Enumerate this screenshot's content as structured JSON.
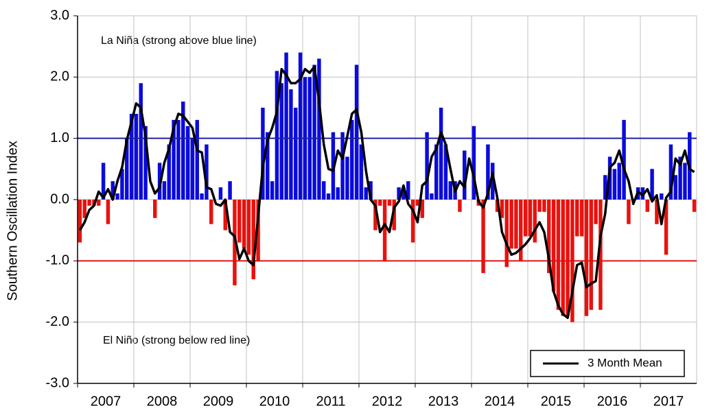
{
  "chart_data": {
    "type": "bar",
    "y_label": "Southern Oscillation Index",
    "annotations": [
      "La Niña (strong above blue line)",
      "El Niño (strong below red line)"
    ],
    "categories": [
      null,
      null,
      null,
      null,
      null,
      null,
      "2007",
      null,
      null,
      null,
      null,
      null,
      null,
      null,
      null,
      null,
      null,
      null,
      "2008",
      null,
      null,
      null,
      null,
      null,
      null,
      null,
      null,
      null,
      null,
      null,
      "2009",
      null,
      null,
      null,
      null,
      null,
      null,
      null,
      null,
      null,
      null,
      null,
      "2010",
      null,
      null,
      null,
      null,
      null,
      null,
      null,
      null,
      null,
      null,
      null,
      "2011",
      null,
      null,
      null,
      null,
      null,
      null,
      null,
      null,
      null,
      null,
      null,
      "2012",
      null,
      null,
      null,
      null,
      null,
      null,
      null,
      null,
      null,
      null,
      null,
      "2013",
      null,
      null,
      null,
      null,
      null,
      null,
      null,
      null,
      null,
      null,
      null,
      "2014",
      null,
      null,
      null,
      null,
      null,
      null,
      null,
      null,
      null,
      null,
      null,
      "2015",
      null,
      null,
      null,
      null,
      null,
      null,
      null,
      null,
      null,
      null,
      null,
      "2016",
      null,
      null,
      null,
      null,
      null,
      null,
      null,
      null,
      null,
      null,
      null,
      "2017",
      null,
      null,
      null,
      null,
      null
    ],
    "values": [
      -0.7,
      -0.3,
      -0.1,
      -0.1,
      -0.1,
      0.6,
      -0.4,
      0.3,
      0.1,
      0.5,
      1.0,
      1.4,
      1.4,
      1.9,
      1.2,
      0.0,
      -0.3,
      0.6,
      0.3,
      0.9,
      1.3,
      1.3,
      1.6,
      1.2,
      1.0,
      1.3,
      0.1,
      0.9,
      -0.4,
      0.0,
      0.2,
      -0.5,
      0.3,
      -1.4,
      -0.7,
      -0.8,
      -0.9,
      -1.3,
      -1.0,
      1.5,
      1.1,
      0.3,
      2.1,
      1.9,
      2.4,
      1.8,
      1.5,
      2.4,
      2.0,
      2.0,
      2.2,
      2.3,
      0.3,
      0.1,
      1.1,
      0.2,
      1.1,
      0.7,
      1.3,
      2.2,
      0.9,
      0.2,
      0.3,
      -0.5,
      -0.1,
      -1.0,
      -0.1,
      -0.5,
      0.2,
      0.2,
      0.3,
      -0.7,
      -0.1,
      -0.3,
      1.1,
      0.1,
      0.9,
      1.5,
      0.9,
      0.3,
      0.3,
      -0.2,
      0.8,
      0.0,
      1.2,
      -0.1,
      -1.2,
      0.9,
      0.6,
      -0.2,
      -0.3,
      -1.1,
      -0.8,
      -0.8,
      -1.0,
      -0.6,
      -0.6,
      -0.7,
      -0.2,
      -0.2,
      -1.2,
      -1.5,
      -1.8,
      -1.9,
      -1.9,
      -2.0,
      -0.6,
      -0.6,
      -1.9,
      -1.8,
      -0.4,
      -1.8,
      0.4,
      0.7,
      0.5,
      0.6,
      1.3,
      -0.4,
      0.0,
      0.2,
      0.2,
      -0.2,
      0.5,
      -0.4,
      0.1,
      -0.9,
      0.9,
      0.4,
      0.7,
      0.6,
      1.1,
      -0.2
    ],
    "positive_color": "#0b0bdc",
    "negative_color": "#e8120e",
    "series": [
      {
        "name": "3 Month Mean",
        "color": "#000000",
        "type": "line",
        "values": [
          -0.5,
          -0.37,
          -0.17,
          -0.1,
          0.13,
          0.03,
          0.17,
          0,
          0.3,
          0.53,
          0.97,
          1.27,
          1.57,
          1.5,
          1.03,
          0.3,
          0.1,
          0.2,
          0.6,
          0.83,
          1.17,
          1.4,
          1.37,
          1.27,
          1.17,
          0.8,
          0.77,
          0.2,
          0.17,
          -0.07,
          -0.1,
          0,
          -0.53,
          -0.6,
          -0.97,
          -0.8,
          -1.0,
          -1.07,
          -0.27,
          0.53,
          0.97,
          1.17,
          1.43,
          2.13,
          2.03,
          1.9,
          1.9,
          1.97,
          2.13,
          2.07,
          2.17,
          1.6,
          0.9,
          0.5,
          0.47,
          0.8,
          0.67,
          1.03,
          1.4,
          1.47,
          1.1,
          0.47,
          0,
          -0.1,
          -0.53,
          -0.4,
          -0.53,
          -0.13,
          -0.03,
          0.23,
          -0.07,
          -0.17,
          -0.37,
          0.23,
          0.3,
          0.7,
          0.83,
          1.1,
          0.9,
          0.5,
          0.13,
          0.3,
          0.2,
          0.67,
          0.37,
          -0.03,
          -0.13,
          0.1,
          0.43,
          0.03,
          -0.53,
          -0.73,
          -0.9,
          -0.87,
          -0.8,
          -0.73,
          -0.63,
          -0.5,
          -0.37,
          -0.53,
          -0.97,
          -1.5,
          -1.73,
          -1.87,
          -1.93,
          -1.5,
          -1.07,
          -1.03,
          -1.43,
          -1.37,
          -1.33,
          -0.6,
          -0.23,
          0.53,
          0.6,
          0.8,
          0.5,
          0.3,
          -0.07,
          0.13,
          0.07,
          0.17,
          -0.03,
          0.07,
          -0.4,
          0.03,
          0.13,
          0.67,
          0.57,
          0.8,
          0.5,
          0.45
        ]
      }
    ],
    "reference_lines": [
      {
        "value": 1,
        "color": "#1f1fa6"
      },
      {
        "value": -1,
        "color": "#e31010"
      }
    ],
    "ylim": [
      -3,
      3
    ],
    "yticks": [
      {
        "value": -3,
        "label": "-3.0"
      },
      {
        "value": -2,
        "label": "-2.0"
      },
      {
        "value": -1,
        "label": "-1.0"
      },
      {
        "value": 0,
        "label": "0.0"
      },
      {
        "value": 1,
        "label": "1.0"
      },
      {
        "value": 2,
        "label": "2.0"
      },
      {
        "value": 3,
        "label": "3.0"
      }
    ],
    "grid": true,
    "legend": "lower right"
  }
}
